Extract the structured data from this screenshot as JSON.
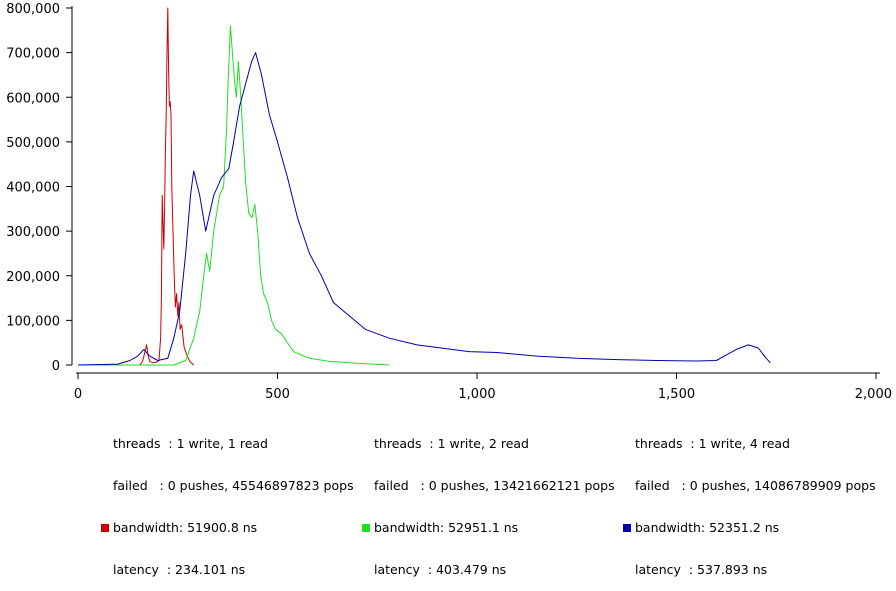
{
  "chart_data": {
    "type": "line",
    "title": "",
    "xlabel": "",
    "ylabel": "",
    "xlim": [
      0,
      2000
    ],
    "ylim": [
      0,
      800000
    ],
    "x_ticks": [
      0,
      500,
      1000,
      1500,
      2000
    ],
    "x_tick_labels": [
      "0",
      "500",
      "1,000",
      "1,500",
      "2,000"
    ],
    "y_ticks": [
      0,
      100000,
      200000,
      300000,
      400000,
      500000,
      600000,
      700000,
      800000
    ],
    "y_tick_labels": [
      "0",
      "100,000",
      "200,000",
      "300,000",
      "400,000",
      "500,000",
      "600,000",
      "700,000",
      "800,000"
    ],
    "grid": false,
    "legend_position": "bottom",
    "series": [
      {
        "color": "#cc0000",
        "legend": {
          "threads": "threads  : 1 write, 1 read",
          "failed": "failed   : 0 pushes, 45546897823 pops",
          "bandwidth": "bandwidth: 51900.8 ns",
          "latency": "latency  : 234.101 ns"
        },
        "points": [
          [
            155,
            0
          ],
          [
            162,
            8000
          ],
          [
            168,
            30000
          ],
          [
            172,
            45000
          ],
          [
            176,
            20000
          ],
          [
            180,
            8000
          ],
          [
            188,
            5000
          ],
          [
            196,
            6000
          ],
          [
            203,
            10000
          ],
          [
            207,
            60000
          ],
          [
            209,
            150000
          ],
          [
            211,
            380000
          ],
          [
            213,
            320000
          ],
          [
            215,
            260000
          ],
          [
            217,
            350000
          ],
          [
            219,
            480000
          ],
          [
            221,
            560000
          ],
          [
            223,
            700000
          ],
          [
            225,
            800000
          ],
          [
            227,
            660000
          ],
          [
            229,
            580000
          ],
          [
            231,
            590000
          ],
          [
            233,
            560000
          ],
          [
            235,
            400000
          ],
          [
            238,
            300000
          ],
          [
            241,
            200000
          ],
          [
            244,
            130000
          ],
          [
            247,
            160000
          ],
          [
            250,
            110000
          ],
          [
            253,
            140000
          ],
          [
            256,
            80000
          ],
          [
            260,
            90000
          ],
          [
            266,
            40000
          ],
          [
            272,
            25000
          ],
          [
            280,
            8000
          ],
          [
            290,
            0
          ]
        ]
      },
      {
        "color": "#22dd22",
        "legend": {
          "threads": "threads  : 1 write, 2 read",
          "failed": "failed   : 0 pushes, 13421662121 pops",
          "bandwidth": "bandwidth: 52951.1 ns",
          "latency": "latency  : 403.479 ns"
        },
        "points": [
          [
            0,
            0
          ],
          [
            240,
            0
          ],
          [
            270,
            10000
          ],
          [
            290,
            60000
          ],
          [
            305,
            120000
          ],
          [
            315,
            200000
          ],
          [
            322,
            250000
          ],
          [
            330,
            210000
          ],
          [
            340,
            300000
          ],
          [
            355,
            380000
          ],
          [
            365,
            400000
          ],
          [
            372,
            520000
          ],
          [
            377,
            650000
          ],
          [
            382,
            760000
          ],
          [
            387,
            700000
          ],
          [
            392,
            640000
          ],
          [
            397,
            600000
          ],
          [
            402,
            680000
          ],
          [
            408,
            600000
          ],
          [
            413,
            520000
          ],
          [
            420,
            410000
          ],
          [
            428,
            340000
          ],
          [
            436,
            330000
          ],
          [
            443,
            360000
          ],
          [
            450,
            300000
          ],
          [
            458,
            200000
          ],
          [
            465,
            160000
          ],
          [
            475,
            140000
          ],
          [
            485,
            100000
          ],
          [
            495,
            80000
          ],
          [
            510,
            70000
          ],
          [
            540,
            30000
          ],
          [
            580,
            15000
          ],
          [
            630,
            8000
          ],
          [
            700,
            4000
          ],
          [
            780,
            0
          ]
        ]
      },
      {
        "color": "#0000aa",
        "legend": {
          "threads": "threads  : 1 write, 4 read",
          "failed": "failed   : 0 pushes, 14086789909 pops",
          "bandwidth": "bandwidth: 52351.2 ns",
          "latency": "latency  : 537.893 ns"
        },
        "points": [
          [
            0,
            0
          ],
          [
            100,
            2000
          ],
          [
            130,
            10000
          ],
          [
            150,
            20000
          ],
          [
            165,
            35000
          ],
          [
            180,
            20000
          ],
          [
            200,
            10000
          ],
          [
            225,
            15000
          ],
          [
            240,
            60000
          ],
          [
            255,
            120000
          ],
          [
            270,
            250000
          ],
          [
            282,
            380000
          ],
          [
            290,
            435000
          ],
          [
            305,
            380000
          ],
          [
            320,
            300000
          ],
          [
            340,
            380000
          ],
          [
            360,
            420000
          ],
          [
            378,
            440000
          ],
          [
            390,
            500000
          ],
          [
            405,
            580000
          ],
          [
            420,
            630000
          ],
          [
            435,
            680000
          ],
          [
            445,
            700000
          ],
          [
            460,
            650000
          ],
          [
            480,
            560000
          ],
          [
            500,
            500000
          ],
          [
            525,
            420000
          ],
          [
            550,
            330000
          ],
          [
            580,
            250000
          ],
          [
            610,
            200000
          ],
          [
            640,
            140000
          ],
          [
            680,
            110000
          ],
          [
            720,
            80000
          ],
          [
            780,
            60000
          ],
          [
            850,
            45000
          ],
          [
            920,
            37000
          ],
          [
            980,
            30000
          ],
          [
            1050,
            28000
          ],
          [
            1150,
            20000
          ],
          [
            1250,
            15000
          ],
          [
            1350,
            12000
          ],
          [
            1450,
            10000
          ],
          [
            1550,
            9000
          ],
          [
            1600,
            10000
          ],
          [
            1620,
            20000
          ],
          [
            1650,
            35000
          ],
          [
            1680,
            45000
          ],
          [
            1705,
            38000
          ],
          [
            1720,
            20000
          ],
          [
            1735,
            5000
          ]
        ]
      }
    ]
  }
}
